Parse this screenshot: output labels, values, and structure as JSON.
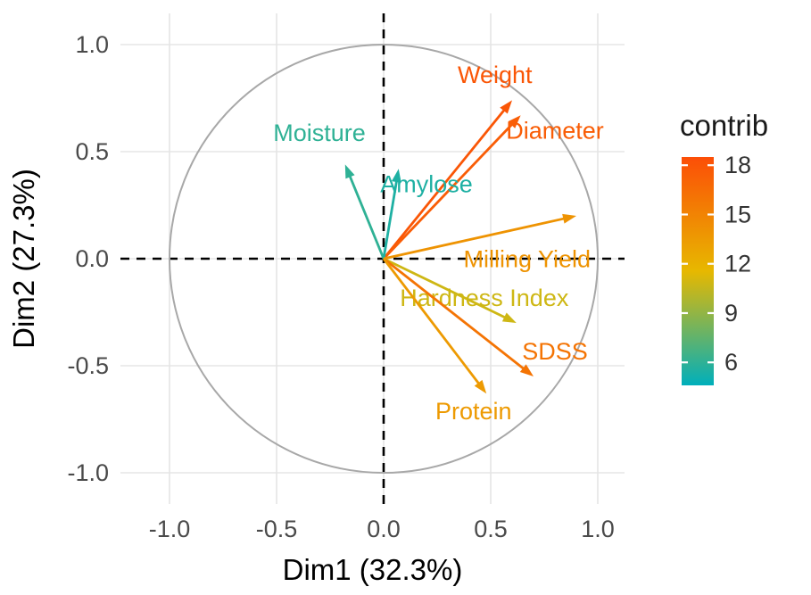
{
  "chart_data": {
    "type": "scatter",
    "subtype": "pca-variable-correlation-circle",
    "title": "",
    "xlabel": "Dim1 (32.3%)",
    "ylabel": "Dim2 (27.3%)",
    "xlim": [
      -1,
      1
    ],
    "ylim": [
      -1,
      1
    ],
    "grid": true,
    "circle_radius": 1,
    "x_ticks": [
      "-1.0",
      "-0.5",
      "0.0",
      "0.5",
      "1.0"
    ],
    "y_ticks": [
      "1.0",
      "0.5",
      "0.0",
      "-0.5",
      "-1.0"
    ],
    "arrows": [
      {
        "label": "Weight",
        "x": 0.6,
        "y": 0.74,
        "contrib": 18.0,
        "label_x": 0.52,
        "label_y": 0.82
      },
      {
        "label": "Diameter",
        "x": 0.64,
        "y": 0.67,
        "contrib": 17.5,
        "label_x": 0.8,
        "label_y": 0.56
      },
      {
        "label": "Moisture",
        "x": -0.18,
        "y": 0.44,
        "contrib": 6.0,
        "label_x": -0.3,
        "label_y": 0.55
      },
      {
        "label": "Amylose",
        "x": 0.07,
        "y": 0.42,
        "contrib": 5.5,
        "label_x": 0.2,
        "label_y": 0.31
      },
      {
        "label": "Milling Yield",
        "x": 0.9,
        "y": 0.2,
        "contrib": 14.0,
        "label_x": 0.67,
        "label_y": -0.04
      },
      {
        "label": "Hardness Index",
        "x": 0.62,
        "y": -0.3,
        "contrib": 10.8,
        "label_x": 0.47,
        "label_y": -0.22
      },
      {
        "label": "SDSS",
        "x": 0.7,
        "y": -0.55,
        "contrib": 16.0,
        "label_x": 0.8,
        "label_y": -0.47
      },
      {
        "label": "Protein",
        "x": 0.48,
        "y": -0.63,
        "contrib": 13.5,
        "label_x": 0.42,
        "label_y": -0.75
      }
    ],
    "legend": {
      "title": "contrib",
      "position": "right",
      "ticks": [
        18,
        15,
        12,
        9,
        6
      ],
      "min": 4.6,
      "max": 18.5,
      "colors": {
        "low": "#00AFBB",
        "mid": "#E7B800",
        "high": "#FC4E07"
      }
    },
    "style_colors": {
      "gridline": "#E5E5E5",
      "axis_dashed": "#000000",
      "unit_circle": "#A8A8A8",
      "tick_label": "#4A4A4A",
      "axis_title": "#000000"
    }
  }
}
